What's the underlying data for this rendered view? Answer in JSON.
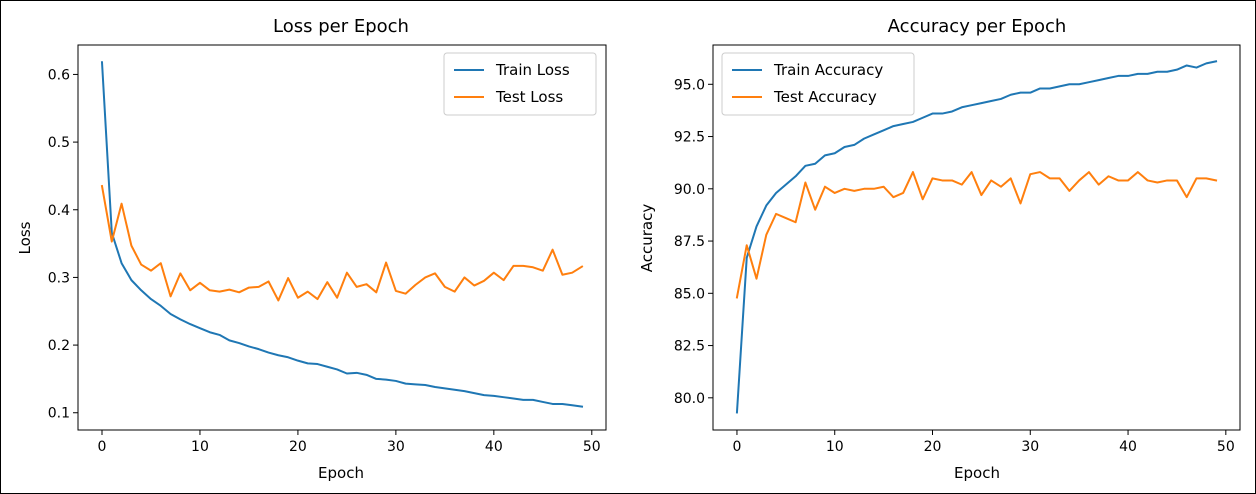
{
  "chart_data": [
    {
      "type": "line",
      "title": "Loss per Epoch",
      "xlabel": "Epoch",
      "ylabel": "Loss",
      "xlim": [
        -2.45,
        51.45
      ],
      "ylim": [
        0.0745,
        0.6435
      ],
      "xticks": [
        0,
        10,
        20,
        30,
        40,
        50
      ],
      "yticks": [
        0.1,
        0.2,
        0.3,
        0.4,
        0.5,
        0.6
      ],
      "legend": "top-right",
      "grid": false,
      "series": [
        {
          "name": "Train Loss",
          "color": "#1f77b4",
          "x": [
            0,
            1,
            2,
            3,
            4,
            5,
            6,
            7,
            8,
            9,
            10,
            11,
            12,
            13,
            14,
            15,
            16,
            17,
            18,
            19,
            20,
            21,
            22,
            23,
            24,
            25,
            26,
            27,
            28,
            29,
            30,
            31,
            32,
            33,
            34,
            35,
            36,
            37,
            38,
            39,
            40,
            41,
            42,
            43,
            44,
            45,
            46,
            47,
            48,
            49
          ],
          "values": [
            0.618,
            0.366,
            0.321,
            0.296,
            0.281,
            0.268,
            0.258,
            0.246,
            0.238,
            0.231,
            0.225,
            0.219,
            0.215,
            0.207,
            0.203,
            0.198,
            0.194,
            0.189,
            0.185,
            0.182,
            0.177,
            0.173,
            0.172,
            0.168,
            0.164,
            0.158,
            0.159,
            0.156,
            0.15,
            0.149,
            0.147,
            0.143,
            0.142,
            0.141,
            0.138,
            0.136,
            0.134,
            0.132,
            0.129,
            0.126,
            0.125,
            0.123,
            0.121,
            0.119,
            0.119,
            0.116,
            0.113,
            0.113,
            0.111,
            0.109
          ]
        },
        {
          "name": "Test Loss",
          "color": "#ff7f0e",
          "x": [
            0,
            1,
            2,
            3,
            4,
            5,
            6,
            7,
            8,
            9,
            10,
            11,
            12,
            13,
            14,
            15,
            16,
            17,
            18,
            19,
            20,
            21,
            22,
            23,
            24,
            25,
            26,
            27,
            28,
            29,
            30,
            31,
            32,
            33,
            34,
            35,
            36,
            37,
            38,
            39,
            40,
            41,
            42,
            43,
            44,
            45,
            46,
            47,
            48,
            49
          ],
          "values": [
            0.435,
            0.353,
            0.409,
            0.347,
            0.319,
            0.31,
            0.321,
            0.272,
            0.306,
            0.281,
            0.292,
            0.281,
            0.279,
            0.282,
            0.278,
            0.285,
            0.286,
            0.294,
            0.266,
            0.299,
            0.27,
            0.279,
            0.268,
            0.293,
            0.27,
            0.307,
            0.286,
            0.29,
            0.278,
            0.322,
            0.28,
            0.276,
            0.289,
            0.3,
            0.306,
            0.286,
            0.279,
            0.3,
            0.288,
            0.295,
            0.307,
            0.296,
            0.317,
            0.317,
            0.315,
            0.31,
            0.341,
            0.304,
            0.307,
            0.316
          ]
        }
      ]
    },
    {
      "type": "line",
      "title": "Accuracy per Epoch",
      "xlabel": "Epoch",
      "ylabel": "Accuracy",
      "xlim": [
        -2.45,
        51.45
      ],
      "ylim": [
        78.46,
        96.88
      ],
      "xticks": [
        0,
        10,
        20,
        30,
        40,
        50
      ],
      "yticks": [
        80.0,
        82.5,
        85.0,
        87.5,
        90.0,
        92.5,
        95.0
      ],
      "ytick_labels": [
        "80.0",
        "82.5",
        "85.0",
        "87.5",
        "90.0",
        "92.5",
        "95.0"
      ],
      "legend": "top-left",
      "grid": false,
      "series": [
        {
          "name": "Train Accuracy",
          "color": "#1f77b4",
          "x": [
            0,
            1,
            2,
            3,
            4,
            5,
            6,
            7,
            8,
            9,
            10,
            11,
            12,
            13,
            14,
            15,
            16,
            17,
            18,
            19,
            20,
            21,
            22,
            23,
            24,
            25,
            26,
            27,
            28,
            29,
            30,
            31,
            32,
            33,
            34,
            35,
            36,
            37,
            38,
            39,
            40,
            41,
            42,
            43,
            44,
            45,
            46,
            47,
            48,
            49
          ],
          "values": [
            79.3,
            86.7,
            88.2,
            89.2,
            89.8,
            90.2,
            90.6,
            91.1,
            91.2,
            91.6,
            91.7,
            92.0,
            92.1,
            92.4,
            92.6,
            92.8,
            93.0,
            93.1,
            93.2,
            93.4,
            93.6,
            93.6,
            93.7,
            93.9,
            94.0,
            94.1,
            94.2,
            94.3,
            94.5,
            94.6,
            94.6,
            94.8,
            94.8,
            94.9,
            95.0,
            95.0,
            95.1,
            95.2,
            95.3,
            95.4,
            95.4,
            95.5,
            95.5,
            95.6,
            95.6,
            95.7,
            95.9,
            95.8,
            96.0,
            96.1
          ]
        },
        {
          "name": "Test Accuracy",
          "color": "#ff7f0e",
          "x": [
            0,
            1,
            2,
            3,
            4,
            5,
            6,
            7,
            8,
            9,
            10,
            11,
            12,
            13,
            14,
            15,
            16,
            17,
            18,
            19,
            20,
            21,
            22,
            23,
            24,
            25,
            26,
            27,
            28,
            29,
            30,
            31,
            32,
            33,
            34,
            35,
            36,
            37,
            38,
            39,
            40,
            41,
            42,
            43,
            44,
            45,
            46,
            47,
            48,
            49
          ],
          "values": [
            84.8,
            87.3,
            85.7,
            87.8,
            88.8,
            88.6,
            88.4,
            90.3,
            89.0,
            90.1,
            89.8,
            90.0,
            89.9,
            90.0,
            90.0,
            90.1,
            89.6,
            89.8,
            90.8,
            89.5,
            90.5,
            90.4,
            90.4,
            90.2,
            90.8,
            89.7,
            90.4,
            90.1,
            90.5,
            89.3,
            90.7,
            90.8,
            90.5,
            90.5,
            89.9,
            90.4,
            90.8,
            90.2,
            90.6,
            90.4,
            90.4,
            90.8,
            90.4,
            90.3,
            90.4,
            90.4,
            89.6,
            90.5,
            90.5,
            90.4
          ]
        }
      ]
    }
  ]
}
